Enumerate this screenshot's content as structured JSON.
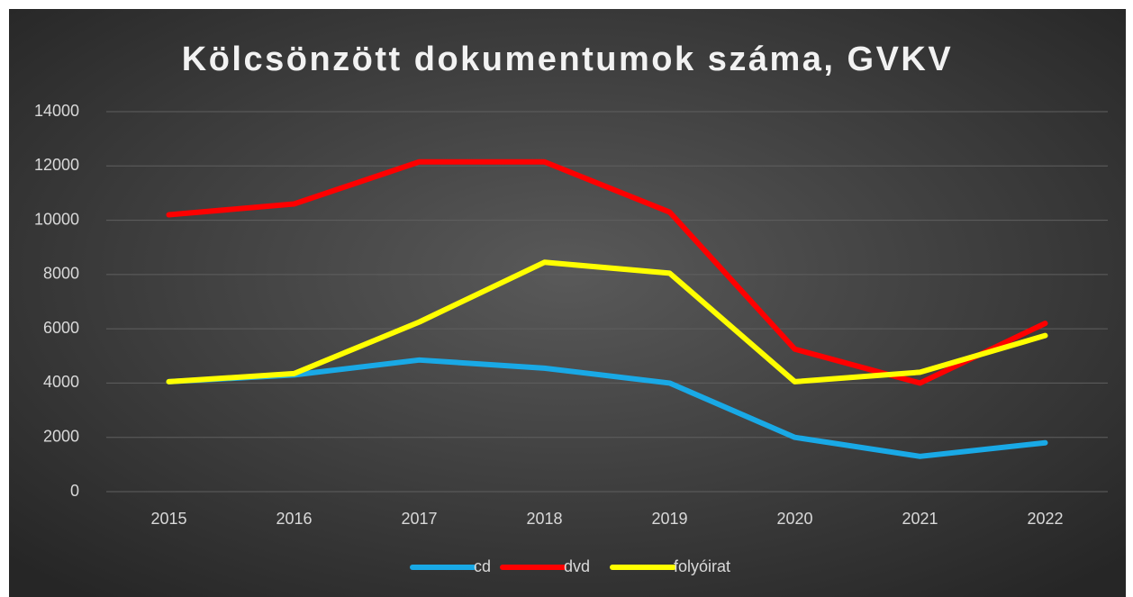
{
  "chart_data": {
    "type": "line",
    "title": "Kölcsönzött dokumentumok száma, GVKV",
    "categories": [
      "2015",
      "2016",
      "2017",
      "2018",
      "2019",
      "2020",
      "2021",
      "2022"
    ],
    "series": [
      {
        "name": "cd",
        "color": "#19a9e6",
        "values": [
          4050,
          4300,
          4850,
          4550,
          4000,
          2000,
          1300,
          1800
        ]
      },
      {
        "name": "dvd",
        "color": "#ff0000",
        "values": [
          10200,
          10600,
          12150,
          12150,
          10300,
          5250,
          4000,
          6200
        ]
      },
      {
        "name": "folyóirat",
        "color": "#ffff00",
        "values": [
          4050,
          4350,
          6250,
          8450,
          8050,
          4050,
          4400,
          5750
        ]
      }
    ],
    "ylim": [
      0,
      14000
    ],
    "yticks": [
      0,
      2000,
      4000,
      6000,
      8000,
      10000,
      12000,
      14000
    ],
    "grid": true,
    "legend": "bottom"
  }
}
